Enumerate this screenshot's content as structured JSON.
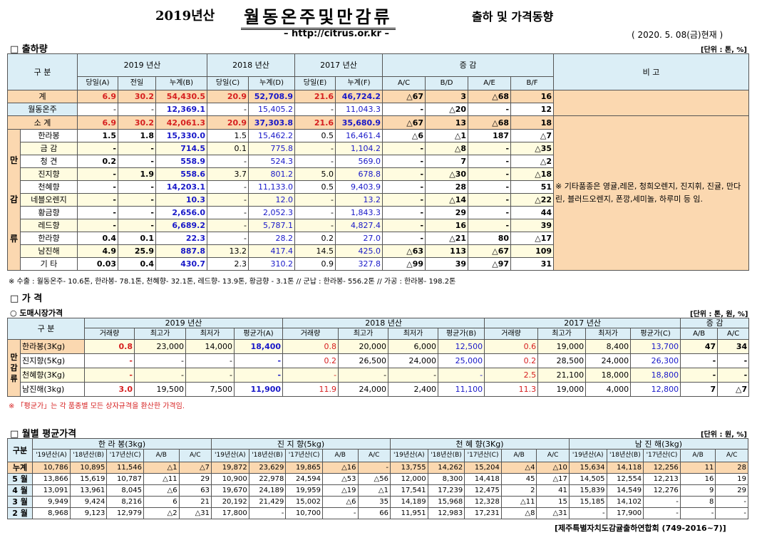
{
  "header": {
    "year": "2019년산",
    "title": "월동온주및만감류",
    "subtitle": "출하 및 가격동향",
    "url": "– http://citrus.or.kr –",
    "date": "( 2020. 5. 08(금)현재 )"
  },
  "s1": {
    "title": "□ 출하량",
    "unit": "[단위 : 톤, %]",
    "col_gubun": "구  분",
    "y2019": "2019 년산",
    "y2018": "2018 년산",
    "y2017": "2017 년산",
    "jg": "증  감",
    "bigo": "비 고",
    "sub": [
      "당일(A)",
      "전일",
      "누계(B)",
      "당일(C)",
      "누계(D)",
      "당일(E)",
      "누계(F)",
      "A/C",
      "B/D",
      "A/E",
      "B/F"
    ],
    "rows": [
      {
        "name": "계",
        "v": [
          "6.9",
          "30.2",
          "54,430.5",
          "20.9",
          "52,708.9",
          "21.6",
          "46,724.2",
          "△67",
          "3",
          "△68",
          "16"
        ]
      },
      {
        "name": "월동온주",
        "v": [
          "-",
          "-",
          "12,369.1",
          "-",
          "15,405.2",
          "-",
          "11,043.3",
          "-",
          "△20",
          "-",
          "12"
        ]
      },
      {
        "name": "소  계",
        "v": [
          "6.9",
          "30.2",
          "42,061.3",
          "20.9",
          "37,303.8",
          "21.6",
          "35,680.9",
          "△67",
          "13",
          "△68",
          "18"
        ]
      },
      {
        "name": "한라봉",
        "v": [
          "1.5",
          "1.8",
          "15,330.0",
          "1.5",
          "15,462.2",
          "0.5",
          "16,461.4",
          "△6",
          "△1",
          "187",
          "△7"
        ]
      },
      {
        "name": "금  감",
        "v": [
          "-",
          "-",
          "714.5",
          "0.1",
          "775.8",
          "-",
          "1,104.2",
          "-",
          "△8",
          "-",
          "△35"
        ]
      },
      {
        "name": "청  견",
        "v": [
          "0.2",
          "-",
          "558.9",
          "-",
          "524.3",
          "-",
          "569.0",
          "-",
          "7",
          "-",
          "△2"
        ]
      },
      {
        "name": "진지향",
        "v": [
          "-",
          "1.9",
          "558.6",
          "3.7",
          "801.2",
          "5.0",
          "678.8",
          "-",
          "△30",
          "-",
          "△18"
        ]
      },
      {
        "name": "천혜향",
        "v": [
          "-",
          "-",
          "14,203.1",
          "-",
          "11,133.0",
          "0.5",
          "9,403.9",
          "-",
          "28",
          "-",
          "51"
        ]
      },
      {
        "name": "네블오렌지",
        "v": [
          "-",
          "-",
          "10.3",
          "-",
          "12.0",
          "-",
          "13.2",
          "-",
          "△14",
          "-",
          "△22"
        ]
      },
      {
        "name": "황금향",
        "v": [
          "-",
          "-",
          "2,656.0",
          "-",
          "2,052.3",
          "-",
          "1,843.3",
          "-",
          "29",
          "-",
          "44"
        ]
      },
      {
        "name": "레드향",
        "v": [
          "-",
          "-",
          "6,689.2",
          "-",
          "5,787.1",
          "-",
          "4,827.4",
          "-",
          "16",
          "-",
          "39"
        ]
      },
      {
        "name": "한라향",
        "v": [
          "0.4",
          "0.1",
          "22.3",
          "-",
          "28.2",
          "0.2",
          "27.0",
          "-",
          "△21",
          "80",
          "△17"
        ]
      },
      {
        "name": "남진해",
        "v": [
          "4.9",
          "25.9",
          "887.8",
          "13.2",
          "417.4",
          "14.5",
          "425.0",
          "△63",
          "113",
          "△67",
          "109"
        ]
      },
      {
        "name": "기  타",
        "v": [
          "0.03",
          "0.4",
          "430.7",
          "2.3",
          "310.2",
          "0.9",
          "327.8",
          "△99",
          "39",
          "△97",
          "31"
        ]
      }
    ],
    "mangam": [
      "만",
      "감",
      "류"
    ],
    "remark": "※ 기타품종은 영귤,레몬, 청희오렌지, 진지휘, 진귤, 만다린, 블러드오렌지, 폰깡,세미놀, 하루미 등 임.",
    "footnote": "※ 수출 : 월동온주- 10.6톤, 한라봉- 78.1톤, 천혜향- 32.1톤, 레드향- 13.9톤, 황금향 - 3.1톤  // 군납 : 한라봉- 556.2톤 // 가공 : 한라봉- 198.2톤"
  },
  "s2": {
    "title": "□ 가    격",
    "sub": "○ 도매시장가격",
    "unit": "[단위 : 톤, 원, %]",
    "col_gubun": "구  분",
    "y2019": "2019 년산",
    "y2018": "2018 년산",
    "y2017": "2017 년산",
    "jg": "증  감",
    "cols": [
      "거래량",
      "최고가",
      "최저가",
      "평균가(A)",
      "거래량",
      "최고가",
      "최저가",
      "평균가(B)",
      "거래량",
      "최고가",
      "최저가",
      "평균가(C)",
      "A/B",
      "A/C"
    ],
    "mangam": "만감류",
    "rows": [
      {
        "name": "한라봉(3Kg)",
        "v": [
          "0.8",
          "23,000",
          "14,000",
          "18,400",
          "0.8",
          "20,000",
          "6,000",
          "12,500",
          "0.6",
          "19,000",
          "8,400",
          "13,700",
          "47",
          "34"
        ]
      },
      {
        "name": "진지향(5Kg)",
        "v": [
          "-",
          "-",
          "-",
          "-",
          "0.2",
          "26,500",
          "24,000",
          "25,000",
          "0.2",
          "28,500",
          "24,000",
          "26,300",
          "-",
          "-"
        ]
      },
      {
        "name": "천혜향(3Kg)",
        "v": [
          "-",
          "-",
          "-",
          "-",
          "-",
          "-",
          "-",
          "-",
          "2.5",
          "21,100",
          "18,000",
          "18,800",
          "-",
          "-"
        ]
      },
      {
        "name": "남진해(3kg)",
        "v": [
          "3.0",
          "19,500",
          "7,500",
          "11,900",
          "11.9",
          "24,000",
          "2,400",
          "11,100",
          "11.3",
          "19,000",
          "4,000",
          "12,800",
          "7",
          "△7"
        ]
      }
    ],
    "footnote": "※ 「평균가」는 각 품종별 모든 상자규격을 환산한 가격임."
  },
  "s3": {
    "title": "□ 월별 평균가격",
    "unit": "[단위 : 원, %]",
    "col_gubun": "구분",
    "groups": [
      "한 라 봉(3kg)",
      "진 지 향(5kg)",
      "천 혜 향(3Kg)",
      "남 진 해(3kg)"
    ],
    "cols": [
      "'19년산(A)",
      "'18년산(B)",
      "'17년산(C)",
      "A/B",
      "A/C"
    ],
    "rows": [
      {
        "name": "누계",
        "v": [
          "10,786",
          "10,895",
          "11,546",
          "△1",
          "△7",
          "19,872",
          "23,629",
          "19,865",
          "△16",
          "-",
          "13,755",
          "14,262",
          "15,204",
          "△4",
          "△10",
          "15,634",
          "14,118",
          "12,256",
          "11",
          "28"
        ]
      },
      {
        "name": "5 월",
        "v": [
          "13,866",
          "15,619",
          "10,787",
          "△11",
          "29",
          "10,900",
          "22,978",
          "24,594",
          "△53",
          "△56",
          "12,000",
          "8,300",
          "14,418",
          "45",
          "△17",
          "14,505",
          "12,554",
          "12,213",
          "16",
          "19"
        ]
      },
      {
        "name": "4 월",
        "v": [
          "13,091",
          "13,961",
          "8,045",
          "△6",
          "63",
          "19,670",
          "24,189",
          "19,959",
          "△19",
          "△1",
          "17,541",
          "17,239",
          "12,475",
          "2",
          "41",
          "15,839",
          "14,549",
          "12,276",
          "9",
          "29"
        ]
      },
      {
        "name": "3 월",
        "v": [
          "9,949",
          "9,424",
          "8,216",
          "6",
          "21",
          "20,192",
          "21,429",
          "15,002",
          "△6",
          "35",
          "14,189",
          "15,968",
          "12,328",
          "△11",
          "15",
          "15,185",
          "14,102",
          "-",
          "8",
          "-"
        ]
      },
      {
        "name": "2 월",
        "v": [
          "8,968",
          "9,123",
          "12,979",
          "△2",
          "△31",
          "17,800",
          "-",
          "10,700",
          "-",
          "66",
          "11,951",
          "12,983",
          "17,231",
          "△8",
          "△31",
          "-",
          "17,900",
          "-",
          "-",
          "-"
        ]
      }
    ]
  },
  "footer": "[제주특별자치도감귤출하연합회 (749-2016~7)]"
}
